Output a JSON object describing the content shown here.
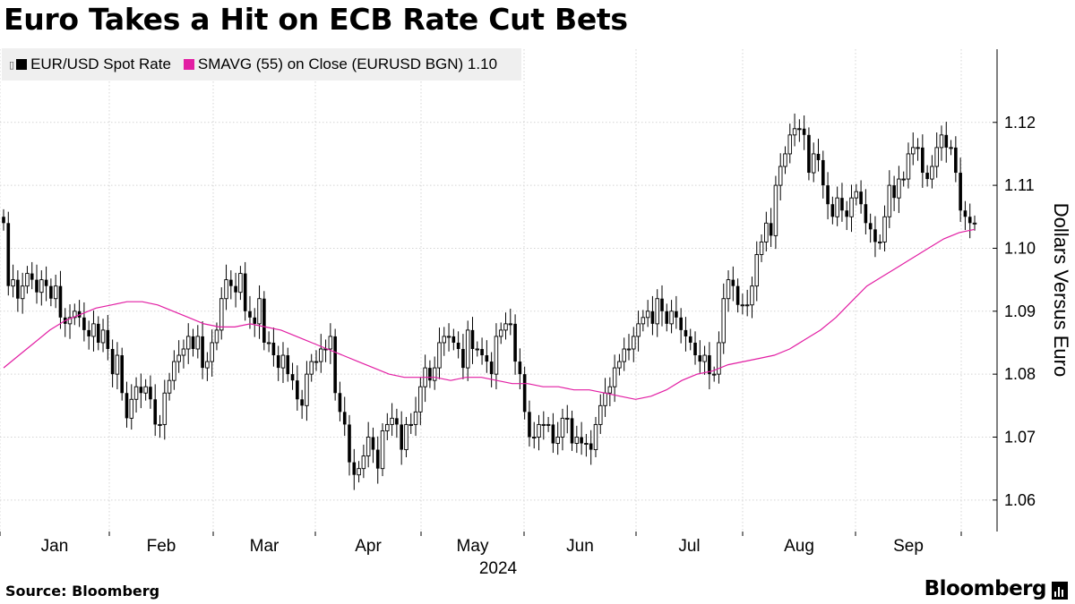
{
  "title": "Euro Takes a Hit on ECB Rate Cut Bets",
  "legend": {
    "series1": "EUR/USD Spot Rate",
    "series2": "SMAVG (55)  on Close (EURUSD BGN) 1.10"
  },
  "footer": {
    "source": "Source:  Bloomberg",
    "brand": "Bloomberg"
  },
  "colors": {
    "candle": "#000000",
    "sma": "#e21ea3",
    "grid": "#d4d4d4"
  },
  "chart_data": {
    "type": "candlestick",
    "ylabel": "Dollars Versus Euro",
    "xlabel": "",
    "ylim": [
      1.055,
      1.1275
    ],
    "yticks": [
      "1.06",
      "1.07",
      "1.08",
      "1.09",
      "1.10",
      "1.11",
      "1.12"
    ],
    "xticks": [
      "Jan",
      "Feb",
      "Mar",
      "Apr",
      "May",
      "Jun",
      "Jul",
      "Aug",
      "Sep"
    ],
    "year_label": "2024",
    "grid": true,
    "legend_position": "top-left",
    "series": [
      {
        "name": "EUR/USD Spot Rate",
        "close_approx": [
          1.104,
          1.094,
          1.095,
          1.092,
          1.094,
          1.096,
          1.095,
          1.093,
          1.095,
          1.094,
          1.092,
          1.094,
          1.089,
          1.088,
          1.089,
          1.09,
          1.089,
          1.087,
          1.086,
          1.088,
          1.085,
          1.087,
          1.084,
          1.08,
          1.083,
          1.077,
          1.073,
          1.076,
          1.078,
          1.077,
          1.078,
          1.076,
          1.072,
          1.072,
          1.077,
          1.079,
          1.082,
          1.083,
          1.084,
          1.086,
          1.084,
          1.086,
          1.081,
          1.082,
          1.085,
          1.087,
          1.092,
          1.095,
          1.094,
          1.093,
          1.096,
          1.09,
          1.089,
          1.088,
          1.092,
          1.085,
          1.085,
          1.083,
          1.081,
          1.083,
          1.08,
          1.079,
          1.076,
          1.075,
          1.08,
          1.082,
          1.082,
          1.084,
          1.084,
          1.086,
          1.077,
          1.074,
          1.072,
          1.066,
          1.064,
          1.065,
          1.067,
          1.07,
          1.068,
          1.065,
          1.071,
          1.072,
          1.073,
          1.072,
          1.068,
          1.072,
          1.072,
          1.074,
          1.078,
          1.081,
          1.079,
          1.081,
          1.085,
          1.086,
          1.086,
          1.085,
          1.084,
          1.081,
          1.087,
          1.084,
          1.084,
          1.083,
          1.082,
          1.08,
          1.086,
          1.087,
          1.088,
          1.088,
          1.082,
          1.08,
          1.074,
          1.07,
          1.07,
          1.072,
          1.072,
          1.072,
          1.069,
          1.07,
          1.073,
          1.073,
          1.069,
          1.07,
          1.069,
          1.069,
          1.068,
          1.072,
          1.075,
          1.077,
          1.078,
          1.081,
          1.082,
          1.084,
          1.084,
          1.086,
          1.088,
          1.089,
          1.09,
          1.088,
          1.092,
          1.09,
          1.088,
          1.09,
          1.089,
          1.087,
          1.086,
          1.085,
          1.083,
          1.082,
          1.083,
          1.08,
          1.08,
          1.085,
          1.092,
          1.095,
          1.094,
          1.091,
          1.091,
          1.091,
          1.094,
          1.099,
          1.101,
          1.104,
          1.102,
          1.11,
          1.113,
          1.115,
          1.118,
          1.119,
          1.119,
          1.118,
          1.112,
          1.115,
          1.114,
          1.11,
          1.107,
          1.105,
          1.108,
          1.106,
          1.105,
          1.108,
          1.109,
          1.107,
          1.104,
          1.103,
          1.101,
          1.101,
          1.105,
          1.11,
          1.108,
          1.111,
          1.111,
          1.115,
          1.116,
          1.116,
          1.112,
          1.111,
          1.113,
          1.116,
          1.118,
          1.116,
          1.116,
          1.112,
          1.106,
          1.105,
          1.104,
          1.104
        ]
      },
      {
        "name": "SMAVG (55)  on Close (EURUSD BGN) 1.10",
        "values_approx": [
          1.081,
          1.083,
          1.085,
          1.087,
          1.0885,
          1.0895,
          1.0905,
          1.091,
          1.0915,
          1.0915,
          1.091,
          1.09,
          1.089,
          1.088,
          1.0875,
          1.0875,
          1.088,
          1.0875,
          1.087,
          1.086,
          1.085,
          1.084,
          1.083,
          1.082,
          1.081,
          1.08,
          1.0795,
          1.0795,
          1.0795,
          1.079,
          1.0795,
          1.0795,
          1.079,
          1.0785,
          1.0785,
          1.078,
          1.078,
          1.0775,
          1.0775,
          1.077,
          1.0765,
          1.076,
          1.0765,
          1.0775,
          1.079,
          1.08,
          1.0805,
          1.0815,
          1.082,
          1.0825,
          1.083,
          1.084,
          1.0855,
          1.087,
          1.089,
          1.0915,
          1.094,
          1.0955,
          1.097,
          1.0985,
          1.1,
          1.1015,
          1.1025,
          1.103
        ]
      }
    ]
  }
}
